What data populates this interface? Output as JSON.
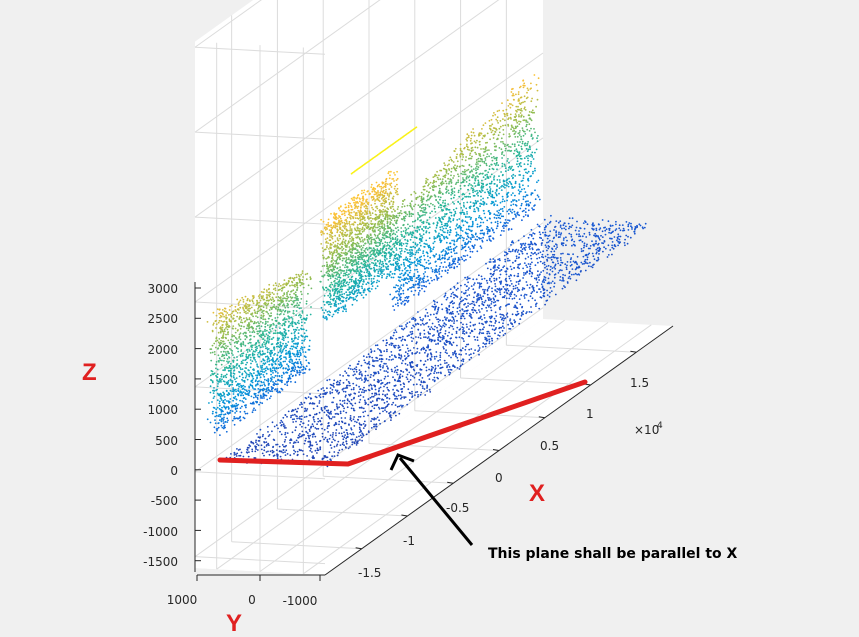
{
  "chart_data": {
    "type": "scatter",
    "projection": "3d",
    "colormap": "parula",
    "color_by": "z",
    "grid": true,
    "z_ticks": [
      "3000",
      "2500",
      "2000",
      "1500",
      "1000",
      "500",
      "0",
      "-500",
      "-1000",
      "-1500"
    ],
    "x_ticks": [
      "-1.5",
      "-1",
      "-0.5",
      "0",
      "0.5",
      "1",
      "1.5"
    ],
    "x_multiplier": "×10",
    "x_multiplier_exp": "4",
    "y_ticks": [
      "1000",
      "0",
      "-1000"
    ],
    "xlim": [
      -1.9,
      1.9
    ],
    "ylim": [
      -1500,
      1500
    ],
    "zlim": [
      -1700,
      3300
    ],
    "annotations": {
      "z_letter": "Z",
      "x_letter": "X",
      "y_letter": "Y",
      "callout": "This plane shall be parallel to X",
      "highlight_color": "#e02020"
    }
  }
}
